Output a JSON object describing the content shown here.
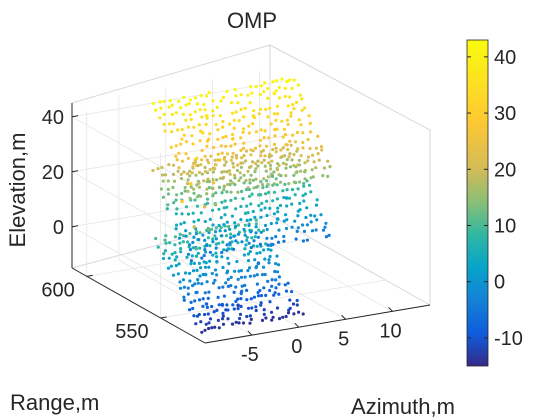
{
  "chart_data": {
    "type": "scatter3d",
    "title": "OMP",
    "xlabel": "Azimuth,m",
    "ylabel": "Range,m",
    "zlabel": "Elevation,m",
    "xlim": [
      -10,
      14
    ],
    "ylim": [
      520,
      610
    ],
    "zlim": [
      -15,
      45
    ],
    "x_ticks": [
      "-5",
      "0",
      "5",
      "10"
    ],
    "x_tick_values": [
      -5,
      0,
      5,
      10
    ],
    "y_ticks": [
      "550",
      "600"
    ],
    "y_tick_values": [
      550,
      600
    ],
    "z_ticks": [
      "0",
      "20",
      "40"
    ],
    "z_tick_values": [
      0,
      20,
      40
    ],
    "colorbar": {
      "colormap": "parula",
      "range": [
        -15,
        43
      ],
      "ticks": [
        "-10",
        "0",
        "10",
        "20",
        "30",
        "40"
      ],
      "tick_values": [
        -10,
        0,
        10,
        20,
        30,
        40
      ]
    },
    "grid": true,
    "clusters": [
      {
        "name_hidden": true,
        "x_range": [
          -9,
          2
        ],
        "y_range": [
          530,
          560
        ],
        "z_range": [
          -14,
          10
        ]
      },
      {
        "name_hidden": true,
        "x_range": [
          -3,
          12
        ],
        "y_range": [
          575,
          600
        ],
        "z_range": [
          -5,
          20
        ]
      },
      {
        "name_hidden": true,
        "x_range": [
          -2,
          13
        ],
        "y_range": [
          580,
          605
        ],
        "z_range": [
          15,
          42
        ]
      }
    ],
    "sample_points": [
      [
        -8.5,
        545,
        28
      ],
      [
        -6,
        555,
        30
      ],
      [
        -3,
        570,
        33
      ],
      [
        0,
        585,
        36
      ],
      [
        2,
        595,
        38
      ],
      [
        -8,
        540,
        20
      ],
      [
        -5,
        552,
        22
      ],
      [
        -2,
        565,
        25
      ],
      [
        1,
        580,
        27
      ],
      [
        -7,
        545,
        10
      ],
      [
        -4,
        555,
        12
      ],
      [
        -1,
        570,
        15
      ],
      [
        -6,
        545,
        0
      ],
      [
        -4,
        550,
        2
      ],
      [
        -2,
        555,
        4
      ],
      [
        -7,
        538,
        -8
      ],
      [
        -5,
        540,
        -10
      ],
      [
        -3,
        542,
        -12
      ],
      [
        2,
        560,
        -5
      ],
      [
        5,
        570,
        -3
      ],
      [
        8,
        585,
        0
      ],
      [
        11,
        598,
        2
      ],
      [
        3,
        575,
        8
      ],
      [
        6,
        585,
        10
      ],
      [
        9,
        595,
        12
      ],
      [
        4,
        590,
        30
      ],
      [
        7,
        595,
        35
      ],
      [
        10,
        600,
        40
      ],
      [
        12,
        604,
        42
      ]
    ]
  }
}
